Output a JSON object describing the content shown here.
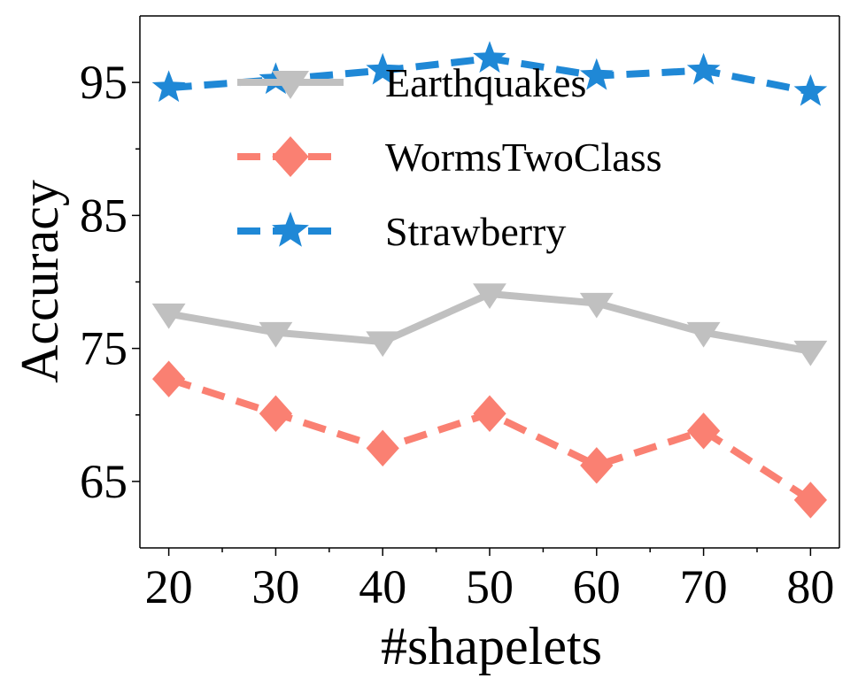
{
  "chart_data": {
    "type": "line",
    "xlabel": "#shapelets",
    "ylabel": "Accuracy",
    "x": [
      20,
      30,
      40,
      50,
      60,
      70,
      80
    ],
    "xticks": [
      "20",
      "30",
      "40",
      "50",
      "60",
      "70",
      "80"
    ],
    "yticks": [
      "65",
      "75",
      "85",
      "95"
    ],
    "ytick_values": [
      65,
      75,
      85,
      95
    ],
    "ylim": [
      60,
      100
    ],
    "xlim": [
      17.3,
      82.7
    ],
    "grid": false,
    "legend_position": "top-center",
    "series": [
      {
        "name": "Earthquakes",
        "values": [
          77.6,
          76.2,
          75.5,
          79.1,
          78.4,
          76.2,
          74.8
        ],
        "color": "#c0c0c0",
        "dash": "solid",
        "marker": "triangle-down"
      },
      {
        "name": "WormsTwoClass",
        "values": [
          72.7,
          70.1,
          67.5,
          70.1,
          66.2,
          68.8,
          63.6
        ],
        "color": "#fa8072",
        "dash": "dashed",
        "marker": "diamond"
      },
      {
        "name": "Strawberry",
        "values": [
          94.6,
          95.2,
          95.9,
          96.8,
          95.5,
          95.9,
          94.3
        ],
        "color": "#1f88d6",
        "dash": "dashed",
        "marker": "star"
      }
    ]
  }
}
